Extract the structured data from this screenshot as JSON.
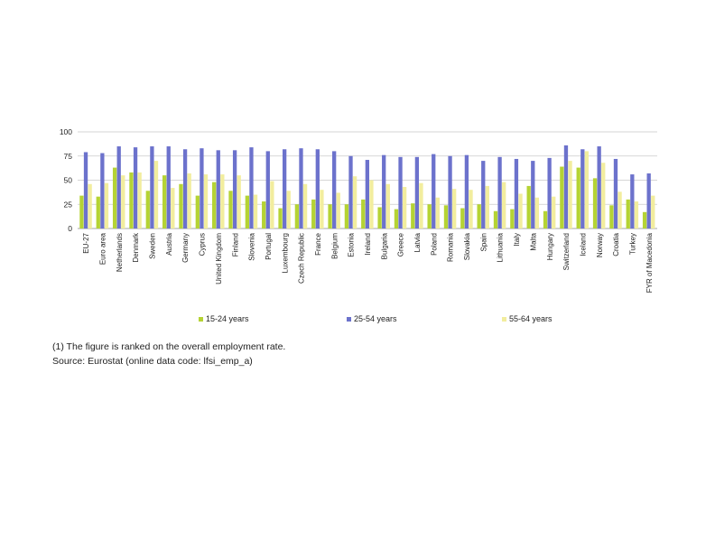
{
  "chart_data": {
    "type": "bar",
    "categories": [
      "EU-27",
      "Euro area",
      "Netherlands",
      "Denmark",
      "Sweden",
      "Austria",
      "Germany",
      "Cyprus",
      "United Kingdom",
      "Finland",
      "Slovenia",
      "Portugal",
      "Luxembourg",
      "Czech Republic",
      "France",
      "Belgium",
      "Estonia",
      "Ireland",
      "Bulgaria",
      "Greece",
      "Latvia",
      "Poland",
      "Romania",
      "Slovakia",
      "Spain",
      "Lithuania",
      "Italy",
      "Malta",
      "Hungary",
      "Switzerland",
      "Iceland",
      "Norway",
      "Croatia",
      "Turkey",
      "FYR of Macedonia"
    ],
    "series": [
      {
        "name": "15-24 years",
        "color": "#b5d334",
        "values": [
          34,
          33,
          63,
          58,
          39,
          55,
          46,
          34,
          48,
          39,
          34,
          28,
          21,
          25,
          30,
          25,
          25,
          30,
          22,
          20,
          26,
          25,
          24,
          21,
          25,
          18,
          20,
          44,
          18,
          64,
          63,
          52,
          24,
          30,
          17
        ]
      },
      {
        "name": "25-54 years",
        "color": "#6c72cc",
        "values": [
          79,
          78,
          85,
          84,
          85,
          85,
          82,
          83,
          81,
          81,
          84,
          80,
          82,
          83,
          82,
          80,
          75,
          71,
          76,
          74,
          74,
          77,
          75,
          76,
          70,
          74,
          72,
          70,
          73,
          86,
          82,
          85,
          72,
          56,
          57
        ]
      },
      {
        "name": "55-64 years",
        "color": "#f2ed9e",
        "values": [
          46,
          47,
          55,
          58,
          70,
          42,
          57,
          56,
          56,
          55,
          35,
          49,
          39,
          46,
          40,
          37,
          54,
          50,
          46,
          43,
          47,
          32,
          41,
          40,
          44,
          48,
          36,
          32,
          33,
          70,
          80,
          68,
          38,
          28,
          34
        ]
      }
    ],
    "yticks": [
      "0",
      "25",
      "50",
      "75",
      "100"
    ],
    "ylim": [
      0,
      100
    ],
    "grid": true,
    "legend": "bottom"
  },
  "notes": {
    "footnote": "(1) The figure is ranked on the overall employment rate.",
    "source": "Source: Eurostat (online data code: lfsi_emp_a)"
  }
}
